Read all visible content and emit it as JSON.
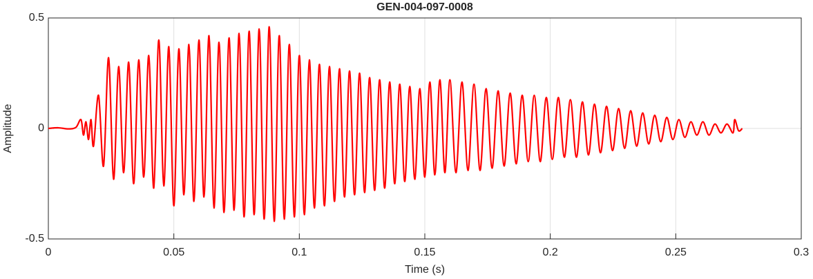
{
  "chart_data": {
    "type": "line",
    "title": "GEN-004-097-0008",
    "x_label": "Time (s)",
    "y_label": "Amplitude",
    "x": [
      0,
      0.004,
      0.008,
      0.011,
      0.013,
      0.014,
      0.015,
      0.016,
      0.017,
      0.018,
      0.02,
      0.022,
      0.024,
      0.026,
      0.028,
      0.03,
      0.032,
      0.034,
      0.036,
      0.038,
      0.04,
      0.042,
      0.044,
      0.046,
      0.048,
      0.05,
      0.052,
      0.054,
      0.056,
      0.058,
      0.06,
      0.062,
      0.064,
      0.066,
      0.068,
      0.07,
      0.072,
      0.074,
      0.076,
      0.078,
      0.08,
      0.082,
      0.084,
      0.086,
      0.088,
      0.09,
      0.092,
      0.094,
      0.096,
      0.098,
      0.1,
      0.102,
      0.104,
      0.106,
      0.108,
      0.11,
      0.112,
      0.114,
      0.116,
      0.118,
      0.12,
      0.122,
      0.124,
      0.126,
      0.128,
      0.13,
      0.132,
      0.134,
      0.136,
      0.138,
      0.14,
      0.142,
      0.144,
      0.146,
      0.148,
      0.15,
      0.152,
      0.154,
      0.156,
      0.158,
      0.16,
      0.1624,
      0.1648,
      0.1672,
      0.1696,
      0.172,
      0.1744,
      0.1768,
      0.1792,
      0.1816,
      0.184,
      0.1864,
      0.1888,
      0.1912,
      0.1936,
      0.196,
      0.1984,
      0.2008,
      0.2032,
      0.2056,
      0.208,
      0.2104,
      0.2128,
      0.2152,
      0.2176,
      0.22,
      0.2224,
      0.2248,
      0.2272,
      0.2296,
      0.232,
      0.2344,
      0.2368,
      0.2392,
      0.2416,
      0.244,
      0.2464,
      0.2488,
      0.2512,
      0.2536,
      0.256,
      0.2584,
      0.2608,
      0.2632,
      0.2656,
      0.268,
      0.2704,
      0.2728,
      0.2735,
      0.275,
      0.2765
    ],
    "values": [
      0,
      0.003,
      -0.002,
      0.005,
      0.04,
      -0.03,
      0.03,
      -0.05,
      0.04,
      -0.08,
      0.15,
      -0.17,
      0.32,
      -0.23,
      0.28,
      -0.2,
      0.3,
      -0.25,
      0.31,
      -0.22,
      0.33,
      -0.27,
      0.4,
      -0.26,
      0.37,
      -0.35,
      0.36,
      -0.3,
      0.38,
      -0.33,
      0.4,
      -0.31,
      0.42,
      -0.36,
      0.39,
      -0.38,
      0.41,
      -0.37,
      0.43,
      -0.4,
      0.44,
      -0.39,
      0.45,
      -0.41,
      0.46,
      -0.42,
      0.42,
      -0.41,
      0.38,
      -0.4,
      0.33,
      -0.39,
      0.31,
      -0.36,
      0.29,
      -0.35,
      0.28,
      -0.33,
      0.27,
      -0.31,
      0.26,
      -0.3,
      0.25,
      -0.29,
      0.23,
      -0.28,
      0.22,
      -0.27,
      0.21,
      -0.25,
      0.2,
      -0.24,
      0.19,
      -0.23,
      0.18,
      -0.22,
      0.21,
      -0.21,
      0.22,
      -0.2,
      0.22,
      -0.2,
      0.21,
      -0.19,
      0.2,
      -0.19,
      0.18,
      -0.18,
      0.17,
      -0.17,
      0.16,
      -0.16,
      0.15,
      -0.15,
      0.15,
      -0.15,
      0.14,
      -0.14,
      0.14,
      -0.13,
      0.13,
      -0.13,
      0.12,
      -0.12,
      0.11,
      -0.11,
      0.1,
      -0.1,
      0.09,
      -0.09,
      0.08,
      -0.08,
      0.07,
      -0.07,
      0.06,
      -0.06,
      0.05,
      -0.05,
      0.04,
      -0.04,
      0.03,
      -0.03,
      0.03,
      -0.03,
      0.02,
      -0.02,
      0.02,
      -0.02,
      0.04,
      -0.01,
      0
    ],
    "color": "#ff0000",
    "xlim": [
      0,
      0.3
    ],
    "ylim": [
      -0.5,
      0.5
    ],
    "xticks": [
      0,
      0.05,
      0.1,
      0.15,
      0.2,
      0.25,
      0.3
    ],
    "yticks": [
      -0.5,
      0,
      0.5
    ],
    "grid": true
  }
}
